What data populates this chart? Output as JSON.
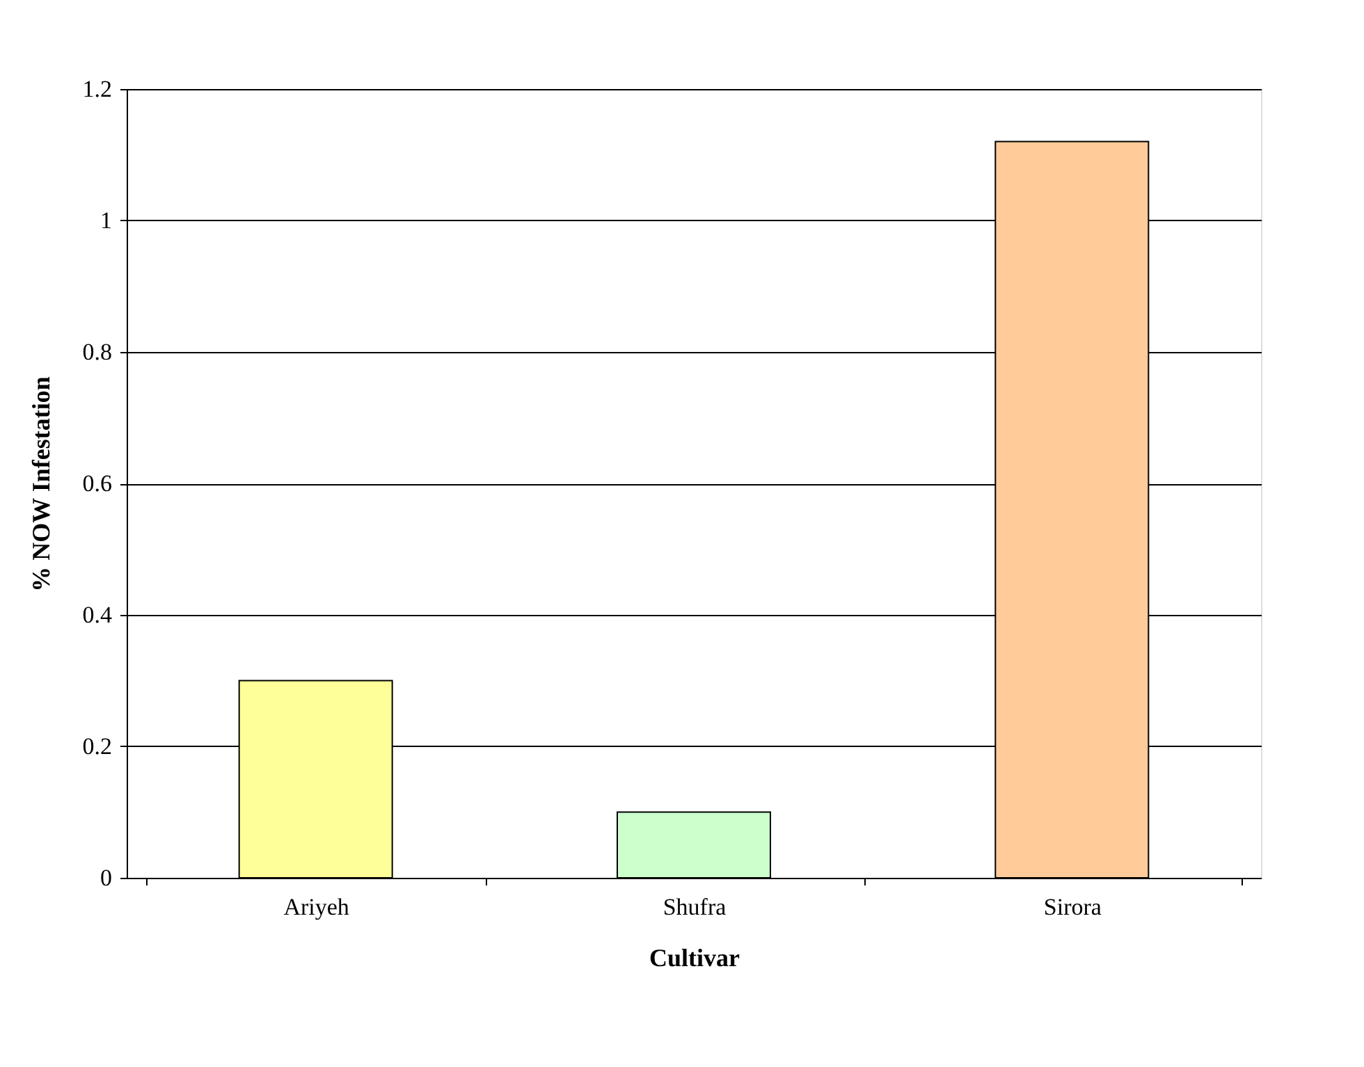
{
  "chart_data": {
    "type": "bar",
    "xlabel": "Cultivar",
    "ylabel": "% NOW Infestation",
    "categories": [
      "Ariyeh",
      "Shufra",
      "Sirora"
    ],
    "values": [
      0.3,
      0.1,
      1.12
    ],
    "colors": [
      "#ffff99",
      "#ccffcc",
      "#ffcc99"
    ],
    "ylim": [
      0,
      1.2
    ],
    "yticks": [
      0,
      0.2,
      0.4,
      0.6,
      0.8,
      1,
      1.2
    ],
    "grid": "y"
  }
}
